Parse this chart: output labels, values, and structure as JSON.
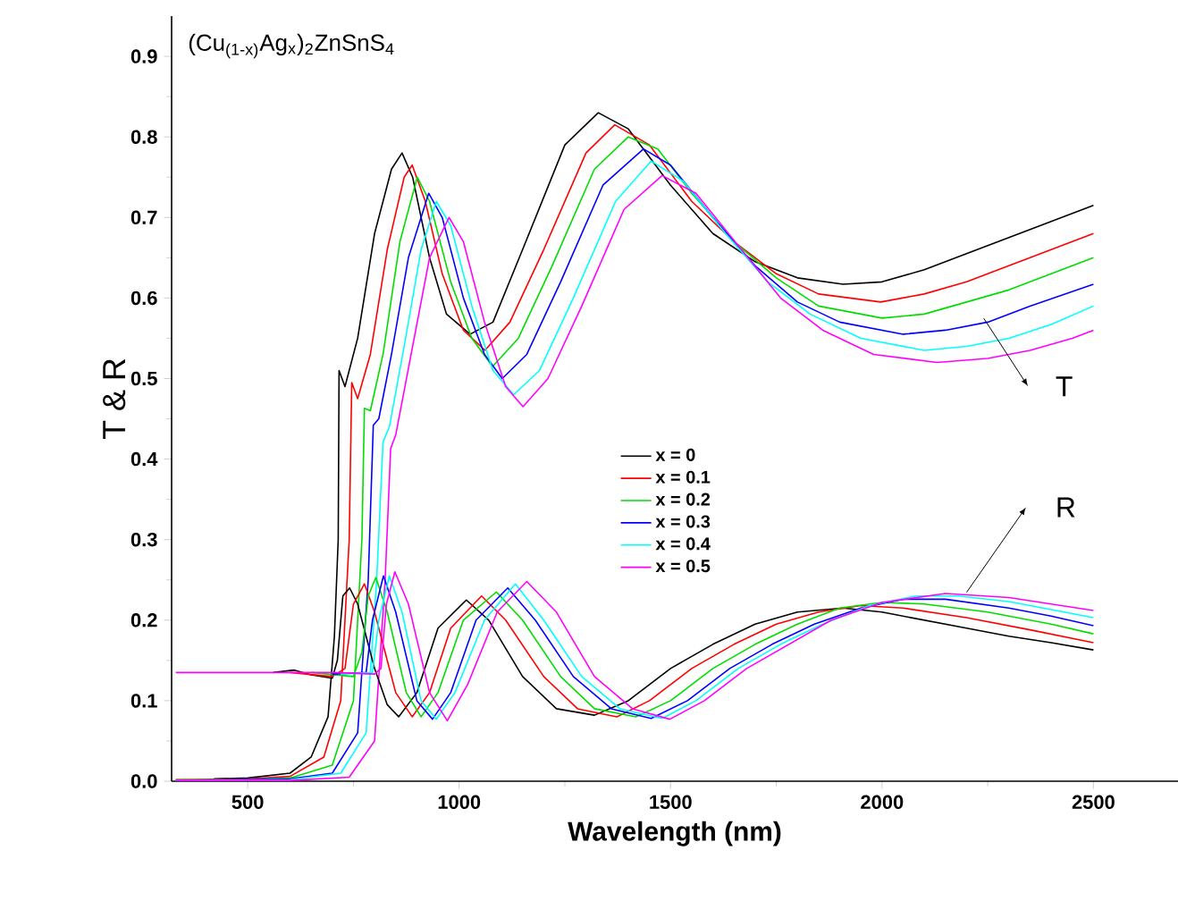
{
  "chart_data": {
    "type": "line",
    "xlabel": "Wavelength (nm)",
    "ylabel": "T & R",
    "xlim": [
      320,
      2700
    ],
    "ylim": [
      0,
      0.95
    ],
    "xticks": [
      500,
      1000,
      1500,
      2000,
      2500
    ],
    "yticks": [
      {
        "value": 0,
        "label": "0.0"
      },
      {
        "value": 0.1,
        "label": "0.1"
      },
      {
        "value": 0.2,
        "label": "0.2"
      },
      {
        "value": 0.3,
        "label": "0.3"
      },
      {
        "value": 0.4,
        "label": "0.4"
      },
      {
        "value": 0.5,
        "label": "0.5"
      },
      {
        "value": 0.6,
        "label": "0.6"
      },
      {
        "value": 0.7,
        "label": "0.7"
      },
      {
        "value": 0.8,
        "label": "0.8"
      },
      {
        "value": 0.9,
        "label": "0.9"
      }
    ],
    "grid": false,
    "legend": "center",
    "marker": "none",
    "line_style": "solid",
    "annotations": [
      "(Cu$_{(1-x)}$Ag$_{x}$)$_{2}$ZnSnS$_{4}$",
      "T",
      "R"
    ],
    "series": [
      {
        "name": "x = 0",
        "color": "#000000",
        "x": [
          420,
          500,
          600,
          650,
          690,
          705,
          714,
          716,
          730,
          760,
          800,
          840,
          865,
          890,
          930,
          970,
          1026,
          1080,
          1150,
          1250,
          1329,
          1400,
          1500,
          1600,
          1700,
          1800,
          1908,
          2000,
          2100,
          2200,
          2300,
          2400,
          2500
        ],
        "values": [
          0.003,
          0.004,
          0.01,
          0.03,
          0.08,
          0.18,
          0.3,
          0.51,
          0.49,
          0.55,
          0.68,
          0.76,
          0.78,
          0.75,
          0.65,
          0.58,
          0.555,
          0.57,
          0.66,
          0.79,
          0.83,
          0.81,
          0.74,
          0.68,
          0.645,
          0.625,
          0.617,
          0.62,
          0.635,
          0.655,
          0.675,
          0.695,
          0.715
        ]
      },
      {
        "name": "x = 0.1",
        "color": "#ff0000",
        "x": [
          330,
          500,
          600,
          680,
          720,
          740,
          746,
          760,
          790,
          830,
          870,
          889,
          920,
          960,
          1010,
          1061,
          1120,
          1200,
          1300,
          1368,
          1450,
          1550,
          1650,
          1750,
          1850,
          1997,
          2100,
          2200,
          2300,
          2400,
          2500
        ],
        "values": [
          0.002,
          0.003,
          0.006,
          0.03,
          0.1,
          0.3,
          0.495,
          0.475,
          0.53,
          0.66,
          0.75,
          0.765,
          0.72,
          0.63,
          0.56,
          0.535,
          0.57,
          0.66,
          0.78,
          0.815,
          0.79,
          0.72,
          0.67,
          0.63,
          0.605,
          0.595,
          0.605,
          0.62,
          0.64,
          0.66,
          0.68
        ]
      },
      {
        "name": "x = 0.2",
        "color": "#00dd00",
        "x": [
          330,
          500,
          600,
          700,
          750,
          770,
          776,
          790,
          820,
          860,
          901,
          930,
          980,
          1030,
          1079,
          1140,
          1220,
          1320,
          1400,
          1470,
          1550,
          1650,
          1750,
          1850,
          2000,
          2100,
          2200,
          2300,
          2400,
          2500
        ],
        "values": [
          0.002,
          0.002,
          0.004,
          0.02,
          0.1,
          0.3,
          0.463,
          0.46,
          0.53,
          0.67,
          0.75,
          0.72,
          0.62,
          0.55,
          0.515,
          0.55,
          0.64,
          0.76,
          0.8,
          0.785,
          0.73,
          0.67,
          0.625,
          0.59,
          0.575,
          0.58,
          0.595,
          0.61,
          0.63,
          0.65
        ]
      },
      {
        "name": "x = 0.3",
        "color": "#0000ff",
        "x": [
          330,
          600,
          700,
          760,
          785,
          797,
          810,
          840,
          880,
          928,
          960,
          1010,
          1060,
          1102,
          1160,
          1240,
          1340,
          1436,
          1500,
          1600,
          1700,
          1800,
          1900,
          2050,
          2150,
          2250,
          2350,
          2500
        ],
        "values": [
          0.001,
          0.003,
          0.01,
          0.06,
          0.25,
          0.442,
          0.45,
          0.53,
          0.65,
          0.73,
          0.7,
          0.6,
          0.53,
          0.5,
          0.53,
          0.62,
          0.74,
          0.785,
          0.765,
          0.7,
          0.64,
          0.595,
          0.57,
          0.555,
          0.56,
          0.57,
          0.59,
          0.617
        ]
      },
      {
        "name": "x = 0.4",
        "color": "#00ffff",
        "x": [
          330,
          600,
          720,
          780,
          805,
          820,
          835,
          870,
          910,
          946,
          980,
          1030,
          1080,
          1129,
          1190,
          1270,
          1370,
          1454,
          1530,
          1630,
          1730,
          1830,
          1950,
          2100,
          2200,
          2300,
          2400,
          2500
        ],
        "values": [
          0.001,
          0.002,
          0.01,
          0.06,
          0.25,
          0.421,
          0.44,
          0.54,
          0.66,
          0.72,
          0.69,
          0.59,
          0.51,
          0.48,
          0.51,
          0.6,
          0.72,
          0.77,
          0.745,
          0.68,
          0.62,
          0.58,
          0.55,
          0.535,
          0.54,
          0.55,
          0.567,
          0.59
        ]
      },
      {
        "name": "x = 0.5",
        "color": "#ff00ff",
        "x": [
          330,
          600,
          740,
          800,
          825,
          838,
          850,
          890,
          930,
          976,
          1010,
          1060,
          1110,
          1151,
          1210,
          1290,
          1390,
          1480,
          1560,
          1660,
          1760,
          1860,
          1980,
          2130,
          2250,
          2350,
          2450,
          2500
        ],
        "values": [
          0.001,
          0.001,
          0.005,
          0.05,
          0.25,
          0.413,
          0.43,
          0.54,
          0.65,
          0.7,
          0.67,
          0.57,
          0.49,
          0.465,
          0.5,
          0.59,
          0.71,
          0.752,
          0.73,
          0.665,
          0.6,
          0.56,
          0.53,
          0.52,
          0.525,
          0.535,
          0.55,
          0.56
        ]
      },
      {
        "color": "#000000",
        "x": [
          560,
          610,
          650,
          700,
          712,
          725,
          741,
          760,
          800,
          830,
          857,
          900,
          950,
          1017,
          1070,
          1150,
          1230,
          1320,
          1400,
          1500,
          1600,
          1700,
          1800,
          1908,
          2000,
          2100,
          2200,
          2300,
          2400,
          2500
        ],
        "values": [
          0.135,
          0.138,
          0.132,
          0.128,
          0.15,
          0.23,
          0.24,
          0.22,
          0.14,
          0.095,
          0.08,
          0.11,
          0.19,
          0.225,
          0.2,
          0.13,
          0.09,
          0.082,
          0.1,
          0.14,
          0.17,
          0.195,
          0.21,
          0.215,
          0.21,
          0.2,
          0.19,
          0.18,
          0.172,
          0.163
        ]
      },
      {
        "color": "#ff0000",
        "x": [
          600,
          700,
          730,
          750,
          776,
          800,
          850,
          889,
          930,
          980,
          1053,
          1110,
          1200,
          1280,
          1373,
          1450,
          1550,
          1650,
          1750,
          1850,
          1950,
          2050,
          2200,
          2350,
          2500
        ],
        "values": [
          0.135,
          0.13,
          0.14,
          0.22,
          0.245,
          0.21,
          0.11,
          0.08,
          0.11,
          0.19,
          0.23,
          0.2,
          0.13,
          0.09,
          0.08,
          0.1,
          0.14,
          0.17,
          0.195,
          0.21,
          0.218,
          0.215,
          0.203,
          0.188,
          0.172
        ]
      },
      {
        "color": "#00dd00",
        "x": [
          650,
          750,
          770,
          785,
          803,
          830,
          875,
          910,
          950,
          1010,
          1088,
          1150,
          1240,
          1320,
          1418,
          1500,
          1600,
          1700,
          1800,
          1900,
          2000,
          2100,
          2250,
          2400,
          2500
        ],
        "values": [
          0.135,
          0.13,
          0.16,
          0.23,
          0.253,
          0.21,
          0.11,
          0.08,
          0.11,
          0.2,
          0.235,
          0.2,
          0.13,
          0.09,
          0.08,
          0.1,
          0.14,
          0.17,
          0.195,
          0.215,
          0.222,
          0.22,
          0.21,
          0.195,
          0.183
        ]
      },
      {
        "color": "#0000ff",
        "x": [
          700,
          780,
          795,
          821,
          850,
          900,
          937,
          980,
          1040,
          1115,
          1180,
          1270,
          1360,
          1454,
          1540,
          1640,
          1740,
          1840,
          1950,
          2050,
          2150,
          2300,
          2400,
          2500
        ],
        "values": [
          0.133,
          0.135,
          0.2,
          0.255,
          0.21,
          0.1,
          0.077,
          0.11,
          0.2,
          0.24,
          0.2,
          0.13,
          0.09,
          0.078,
          0.1,
          0.14,
          0.17,
          0.195,
          0.215,
          0.226,
          0.226,
          0.215,
          0.205,
          0.193
        ]
      },
      {
        "color": "#00ffff",
        "x": [
          720,
          795,
          810,
          835,
          865,
          910,
          946,
          990,
          1060,
          1133,
          1200,
          1290,
          1380,
          1480,
          1560,
          1660,
          1760,
          1860,
          1970,
          2080,
          2180,
          2300,
          2400,
          2500
        ],
        "values": [
          0.133,
          0.135,
          0.2,
          0.255,
          0.21,
          0.1,
          0.077,
          0.11,
          0.2,
          0.245,
          0.2,
          0.13,
          0.09,
          0.078,
          0.1,
          0.14,
          0.17,
          0.195,
          0.218,
          0.23,
          0.23,
          0.223,
          0.213,
          0.203
        ]
      },
      {
        "color": "#ff00ff",
        "x": [
          330,
          700,
          800,
          815,
          828,
          848,
          880,
          930,
          972,
          1020,
          1090,
          1160,
          1230,
          1320,
          1410,
          1498,
          1580,
          1680,
          1780,
          1880,
          2000,
          2150,
          2300,
          2400,
          2500
        ],
        "values": [
          0.135,
          0.135,
          0.133,
          0.14,
          0.22,
          0.26,
          0.22,
          0.11,
          0.075,
          0.12,
          0.21,
          0.248,
          0.21,
          0.13,
          0.09,
          0.077,
          0.1,
          0.14,
          0.17,
          0.2,
          0.222,
          0.233,
          0.228,
          0.22,
          0.212
        ]
      }
    ]
  }
}
